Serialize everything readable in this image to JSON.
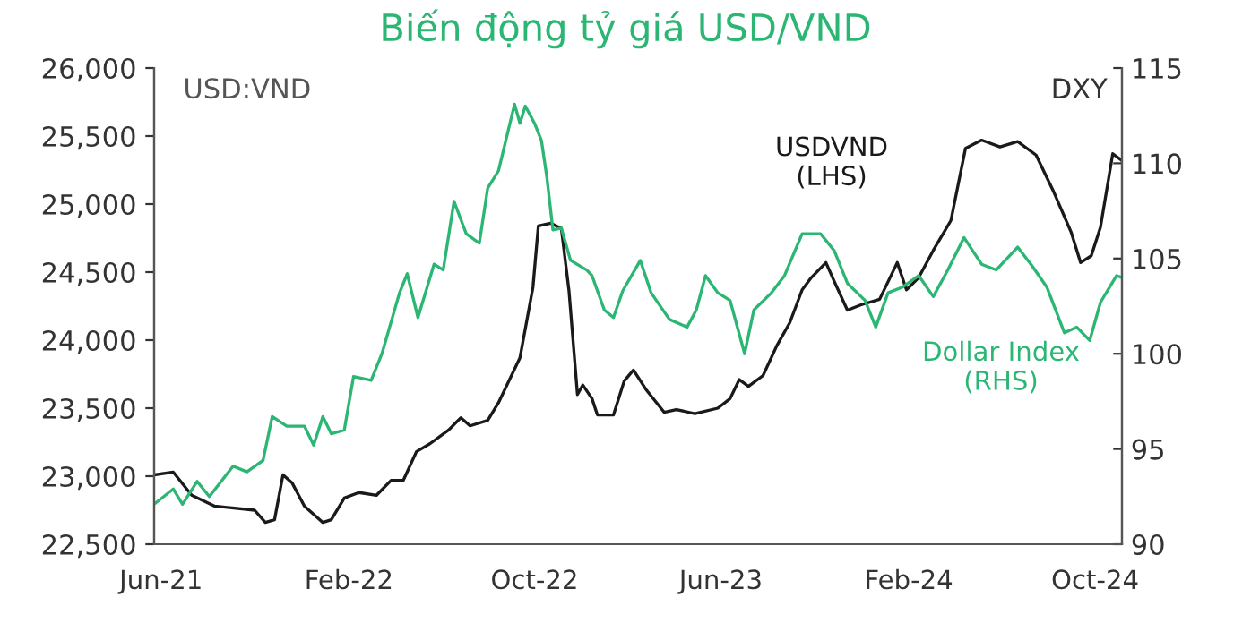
{
  "chart_data": {
    "type": "line",
    "title": "Biến động tỷ giá USD/VND",
    "ylabel": "USD:VND",
    "y2label": "DXY",
    "xlim": [
      "2021-05-23",
      "2024-11-05"
    ],
    "xticks": [
      {
        "value": "2021-06-01",
        "label": "Jun-21"
      },
      {
        "value": "2022-02-01",
        "label": "Feb-22"
      },
      {
        "value": "2022-10-01",
        "label": "Oct-22"
      },
      {
        "value": "2023-06-01",
        "label": "Jun-23"
      },
      {
        "value": "2024-02-01",
        "label": "Feb-24"
      },
      {
        "value": "2024-10-01",
        "label": "Oct-24"
      }
    ],
    "ylim": [
      22500,
      26000
    ],
    "yticks": [
      {
        "value": 22500,
        "label": "22,500"
      },
      {
        "value": 23000,
        "label": "23,000"
      },
      {
        "value": 23500,
        "label": "23,500"
      },
      {
        "value": 24000,
        "label": "24,000"
      },
      {
        "value": 24500,
        "label": "24,500"
      },
      {
        "value": 25000,
        "label": "25,000"
      },
      {
        "value": 25500,
        "label": "25,500"
      },
      {
        "value": 26000,
        "label": "26,000"
      }
    ],
    "y2lim": [
      90,
      115
    ],
    "y2ticks": [
      90,
      95,
      100,
      105,
      110,
      115
    ],
    "grid": false,
    "legend": false,
    "marker": "none",
    "line_style": "solid",
    "series": [
      {
        "name": "USDVND\n(LHS)",
        "color": "#1a1a1a",
        "x": [
          "2021-05-23",
          "2021-06-17",
          "2021-07-11",
          "2021-08-10",
          "2021-10-01",
          "2021-10-15",
          "2021-10-27",
          "2021-11-07",
          "2021-11-19",
          "2021-12-05",
          "2021-12-29",
          "2022-01-09",
          "2022-01-26",
          "2022-02-14",
          "2022-03-09",
          "2022-03-28",
          "2022-04-13",
          "2022-04-30",
          "2022-05-18",
          "2022-06-11",
          "2022-06-27",
          "2022-07-09",
          "2022-08-01",
          "2022-08-15",
          "2022-09-12",
          "2022-09-29",
          "2022-10-06",
          "2022-10-22",
          "2022-11-05",
          "2022-11-15",
          "2022-11-26",
          "2022-12-03",
          "2022-12-15",
          "2022-12-22",
          "2023-01-12",
          "2023-01-26",
          "2023-02-07",
          "2023-02-23",
          "2023-03-19",
          "2023-04-04",
          "2023-04-28",
          "2023-05-28",
          "2023-06-13",
          "2023-06-25",
          "2023-07-07",
          "2023-07-26",
          "2023-08-13",
          "2023-08-30",
          "2023-09-15",
          "2023-09-27",
          "2023-10-16",
          "2023-10-27",
          "2023-11-13",
          "2023-12-01",
          "2023-12-25",
          "2024-01-17",
          "2024-01-29",
          "2024-02-14",
          "2024-03-04",
          "2024-03-27",
          "2024-04-15",
          "2024-05-06",
          "2024-05-30",
          "2024-06-22",
          "2024-07-16",
          "2024-08-08",
          "2024-08-31",
          "2024-09-12",
          "2024-09-26",
          "2024-10-08",
          "2024-10-24",
          "2024-11-05"
        ],
        "values": [
          23010,
          23030,
          22860,
          22780,
          22750,
          22660,
          22680,
          23010,
          22950,
          22780,
          22660,
          22680,
          22840,
          22880,
          22860,
          22970,
          22970,
          23180,
          23240,
          23340,
          23430,
          23370,
          23410,
          23540,
          23870,
          24390,
          24840,
          24860,
          24820,
          24360,
          23600,
          23670,
          23570,
          23450,
          23450,
          23700,
          23780,
          23640,
          23470,
          23490,
          23460,
          23500,
          23570,
          23710,
          23660,
          23740,
          23960,
          24130,
          24370,
          24460,
          24570,
          24430,
          24220,
          24260,
          24300,
          24570,
          24370,
          24460,
          24660,
          24880,
          25410,
          25470,
          25420,
          25460,
          25360,
          25090,
          24790,
          24570,
          24620,
          24830,
          25370,
          25320
        ]
      },
      {
        "name": "Dollar Index\n(RHS)",
        "color": "#2bb673",
        "axis": "y2",
        "x": [
          "2021-05-23",
          "2021-06-17",
          "2021-06-29",
          "2021-07-18",
          "2021-08-03",
          "2021-09-03",
          "2021-09-21",
          "2021-10-12",
          "2021-10-24",
          "2021-11-12",
          "2021-12-05",
          "2021-12-17",
          "2021-12-29",
          "2022-01-09",
          "2022-01-26",
          "2022-02-07",
          "2022-03-02",
          "2022-03-16",
          "2022-04-08",
          "2022-04-18",
          "2022-05-02",
          "2022-05-23",
          "2022-06-04",
          "2022-06-18",
          "2022-07-04",
          "2022-07-21",
          "2022-08-01",
          "2022-08-15",
          "2022-09-05",
          "2022-09-12",
          "2022-09-19",
          "2022-10-01",
          "2022-10-10",
          "2022-10-17",
          "2022-10-25",
          "2022-11-05",
          "2022-11-17",
          "2022-12-08",
          "2022-12-15",
          "2022-12-31",
          "2023-01-12",
          "2023-01-24",
          "2023-02-16",
          "2023-03-02",
          "2023-03-26",
          "2023-04-18",
          "2023-04-30",
          "2023-05-12",
          "2023-05-28",
          "2023-06-13",
          "2023-07-02",
          "2023-07-14",
          "2023-08-06",
          "2023-08-23",
          "2023-09-15",
          "2023-10-09",
          "2023-10-27",
          "2023-11-13",
          "2023-12-06",
          "2023-12-20",
          "2024-01-05",
          "2024-01-24",
          "2024-02-14",
          "2024-03-04",
          "2024-03-23",
          "2024-04-13",
          "2024-05-06",
          "2024-05-25",
          "2024-06-22",
          "2024-07-11",
          "2024-07-30",
          "2024-08-22",
          "2024-09-07",
          "2024-09-24",
          "2024-10-08",
          "2024-10-29",
          "2024-11-05"
        ],
        "values": [
          92.1,
          92.9,
          92.1,
          93.3,
          92.5,
          94.1,
          93.8,
          94.4,
          96.7,
          96.2,
          96.2,
          95.2,
          96.7,
          95.8,
          96.0,
          98.8,
          98.6,
          100.0,
          103.2,
          104.2,
          101.9,
          104.7,
          104.4,
          108.0,
          106.3,
          105.8,
          108.7,
          109.6,
          113.1,
          112.1,
          113.0,
          112.1,
          111.2,
          109.3,
          106.5,
          106.6,
          104.9,
          104.4,
          104.1,
          102.3,
          101.9,
          103.3,
          104.9,
          103.2,
          101.8,
          101.4,
          102.3,
          104.1,
          103.2,
          102.8,
          100.0,
          102.3,
          103.2,
          104.1,
          106.3,
          106.3,
          105.4,
          103.7,
          102.8,
          101.4,
          103.2,
          103.5,
          104.1,
          103.0,
          104.4,
          106.1,
          104.7,
          104.4,
          105.6,
          104.6,
          103.5,
          101.1,
          101.4,
          100.7,
          102.7,
          104.1,
          104.0
        ]
      }
    ]
  }
}
